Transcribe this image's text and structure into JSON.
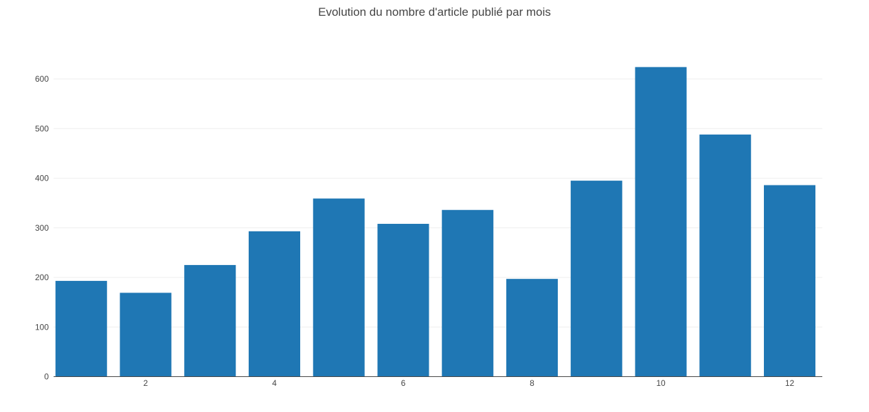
{
  "chart_data": {
    "type": "bar",
    "title": "Evolution du nombre d'article publié par mois",
    "xlabel": "",
    "ylabel": "",
    "x": [
      1,
      2,
      3,
      4,
      5,
      6,
      7,
      8,
      9,
      10,
      11,
      12
    ],
    "values": [
      193,
      169,
      225,
      293,
      359,
      308,
      336,
      197,
      395,
      624,
      488,
      386
    ],
    "x_tick_labels": [
      "2",
      "4",
      "6",
      "8",
      "10",
      "12"
    ],
    "y_tick_labels": [
      "0",
      "100",
      "200",
      "300",
      "400",
      "500",
      "600"
    ],
    "ylim": [
      0,
      655
    ],
    "grid": true,
    "bar_color": "#1f77b4",
    "grid_color": "#eeeeee"
  }
}
